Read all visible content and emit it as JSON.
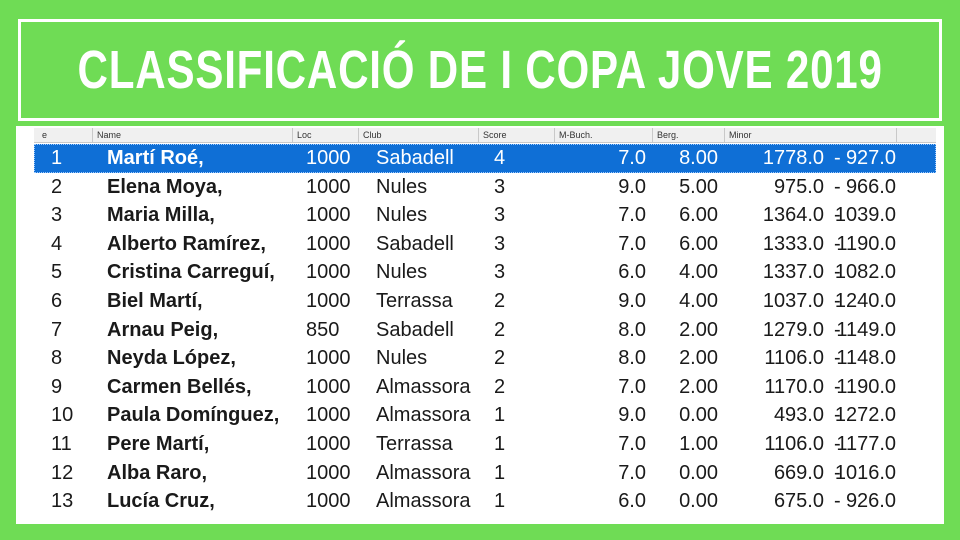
{
  "title": "CLASSIFICACIÓ DE I COPA JOVE 2019",
  "colors": {
    "accent": "#6fdc55",
    "selection": "#0f6fd6"
  },
  "table": {
    "headers": [
      "e",
      "Name",
      "Loc",
      "Club",
      "Score",
      "M-Buch.",
      "Berg.",
      "Minor"
    ],
    "rows": [
      {
        "rank": "1",
        "name": "Martí Roé,",
        "loc": "1000",
        "club": "Sabadell",
        "score": "4",
        "mbuch": "7.0",
        "berg": "8.00",
        "minor_a": "1778.0",
        "minor_b": "927.0",
        "selected": true
      },
      {
        "rank": "2",
        "name": "Elena Moya,",
        "loc": "1000",
        "club": "Nules",
        "score": "3",
        "mbuch": "9.0",
        "berg": "5.00",
        "minor_a": "975.0",
        "minor_b": "966.0"
      },
      {
        "rank": "3",
        "name": "Maria Milla,",
        "loc": "1000",
        "club": "Nules",
        "score": "3",
        "mbuch": "7.0",
        "berg": "6.00",
        "minor_a": "1364.0",
        "minor_b": "1039.0"
      },
      {
        "rank": "4",
        "name": "Alberto Ramírez,",
        "loc": "1000",
        "club": "Sabadell",
        "score": "3",
        "mbuch": "7.0",
        "berg": "6.00",
        "minor_a": "1333.0",
        "minor_b": "1190.0"
      },
      {
        "rank": "5",
        "name": "Cristina Carreguí,",
        "loc": "1000",
        "club": "Nules",
        "score": "3",
        "mbuch": "6.0",
        "berg": "4.00",
        "minor_a": "1337.0",
        "minor_b": "1082.0"
      },
      {
        "rank": "6",
        "name": "Biel Martí,",
        "loc": "1000",
        "club": "Terrassa",
        "score": "2",
        "mbuch": "9.0",
        "berg": "4.00",
        "minor_a": "1037.0",
        "minor_b": "1240.0"
      },
      {
        "rank": "7",
        "name": "Arnau Peig,",
        "loc": "850",
        "club": "Sabadell",
        "score": "2",
        "mbuch": "8.0",
        "berg": "2.00",
        "minor_a": "1279.0",
        "minor_b": "1149.0"
      },
      {
        "rank": "8",
        "name": "Neyda López,",
        "loc": "1000",
        "club": "Nules",
        "score": "2",
        "mbuch": "8.0",
        "berg": "2.00",
        "minor_a": "1106.0",
        "minor_b": "1148.0"
      },
      {
        "rank": "9",
        "name": "Carmen Bellés,",
        "loc": "1000",
        "club": "Almassora",
        "score": "2",
        "mbuch": "7.0",
        "berg": "2.00",
        "minor_a": "1170.0",
        "minor_b": "1190.0"
      },
      {
        "rank": "10",
        "name": "Paula Domínguez,",
        "loc": "1000",
        "club": "Almassora",
        "score": "1",
        "mbuch": "9.0",
        "berg": "0.00",
        "minor_a": "493.0",
        "minor_b": "1272.0"
      },
      {
        "rank": "11",
        "name": "Pere Martí,",
        "loc": "1000",
        "club": "Terrassa",
        "score": "1",
        "mbuch": "7.0",
        "berg": "1.00",
        "minor_a": "1106.0",
        "minor_b": "1177.0"
      },
      {
        "rank": "12",
        "name": "Alba Raro,",
        "loc": "1000",
        "club": "Almassora",
        "score": "1",
        "mbuch": "7.0",
        "berg": "0.00",
        "minor_a": "669.0",
        "minor_b": "1016.0"
      },
      {
        "rank": "13",
        "name": "Lucía Cruz,",
        "loc": "1000",
        "club": "Almassora",
        "score": "1",
        "mbuch": "6.0",
        "berg": "0.00",
        "minor_a": "675.0",
        "minor_b": "926.0"
      }
    ]
  }
}
